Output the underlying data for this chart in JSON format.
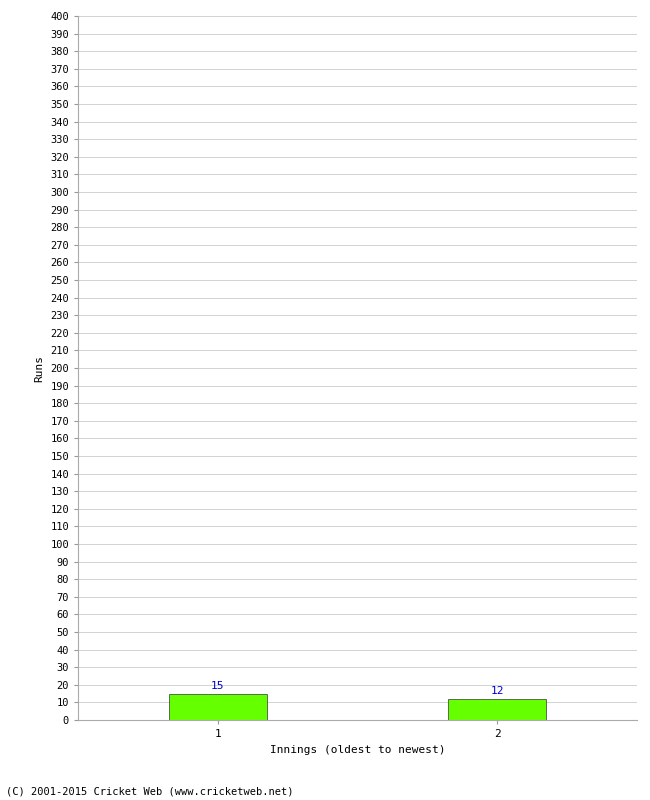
{
  "categories": [
    "1",
    "2"
  ],
  "values": [
    15,
    12
  ],
  "bar_color": "#66ff00",
  "bar_edge_color": "#333333",
  "xlabel": "Innings (oldest to newest)",
  "ylabel": "Runs",
  "ylim": [
    0,
    400
  ],
  "ytick_step": 10,
  "label_color": "#0000cc",
  "background_color": "#ffffff",
  "grid_color": "#cccccc",
  "footer": "(C) 2001-2015 Cricket Web (www.cricketweb.net)",
  "bar_width": 0.35,
  "figsize": [
    6.5,
    8.0
  ],
  "dpi": 100
}
